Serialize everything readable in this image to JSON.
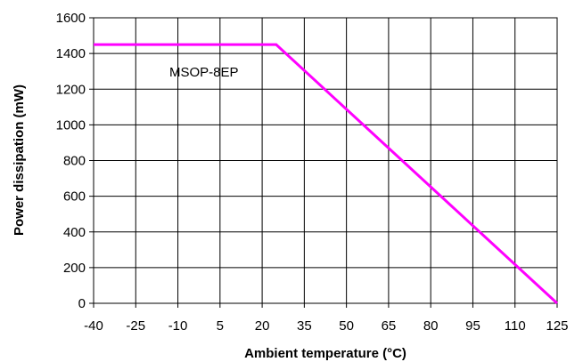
{
  "chart_data": {
    "type": "line",
    "title": "",
    "xlabel": "Ambient temperature (°C)",
    "ylabel": "Power dissipation (mW)",
    "x_ticks": [
      -40,
      -25,
      -10,
      5,
      20,
      35,
      50,
      65,
      80,
      95,
      110,
      125
    ],
    "y_ticks": [
      0,
      200,
      400,
      600,
      800,
      1000,
      1200,
      1400,
      1600
    ],
    "xlim": [
      -40,
      125
    ],
    "ylim": [
      0,
      1600
    ],
    "grid": true,
    "series": [
      {
        "name": "MSOP-8EP",
        "color": "#ff00ff",
        "x": [
          -40,
          25,
          125
        ],
        "y": [
          1450,
          1450,
          0
        ]
      }
    ],
    "annotations": [
      {
        "text": "MSOP-8EP"
      }
    ]
  }
}
